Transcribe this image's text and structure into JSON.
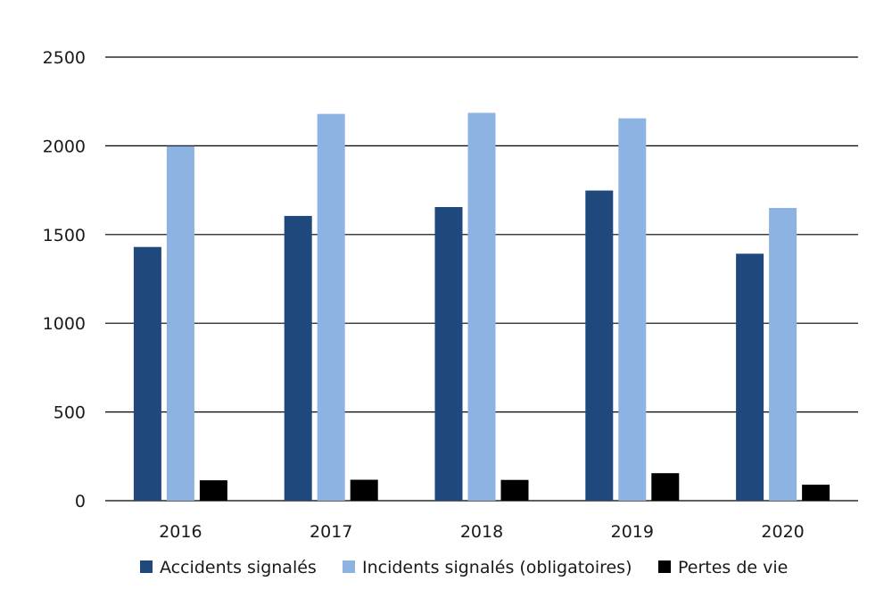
{
  "chart_data": {
    "type": "bar",
    "categories": [
      "2016",
      "2017",
      "2018",
      "2019",
      "2020"
    ],
    "series": [
      {
        "name": "Accidents signalés",
        "color": "#1f497d",
        "values": [
          1430,
          1605,
          1655,
          1748,
          1392
        ]
      },
      {
        "name": "Incidents signalés (obligatoires)",
        "color": "#8db3e2",
        "values": [
          1998,
          2180,
          2186,
          2155,
          1650
        ]
      },
      {
        "name": "Pertes de vie",
        "color": "#000000",
        "values": [
          115,
          118,
          117,
          155,
          90
        ]
      }
    ],
    "yticks": [
      "0",
      "500",
      "1000",
      "1500",
      "2000",
      "2500"
    ],
    "ylim": [
      0,
      2500
    ],
    "grid": true,
    "legend_position": "bottom",
    "title": "",
    "xlabel": "",
    "ylabel": ""
  }
}
